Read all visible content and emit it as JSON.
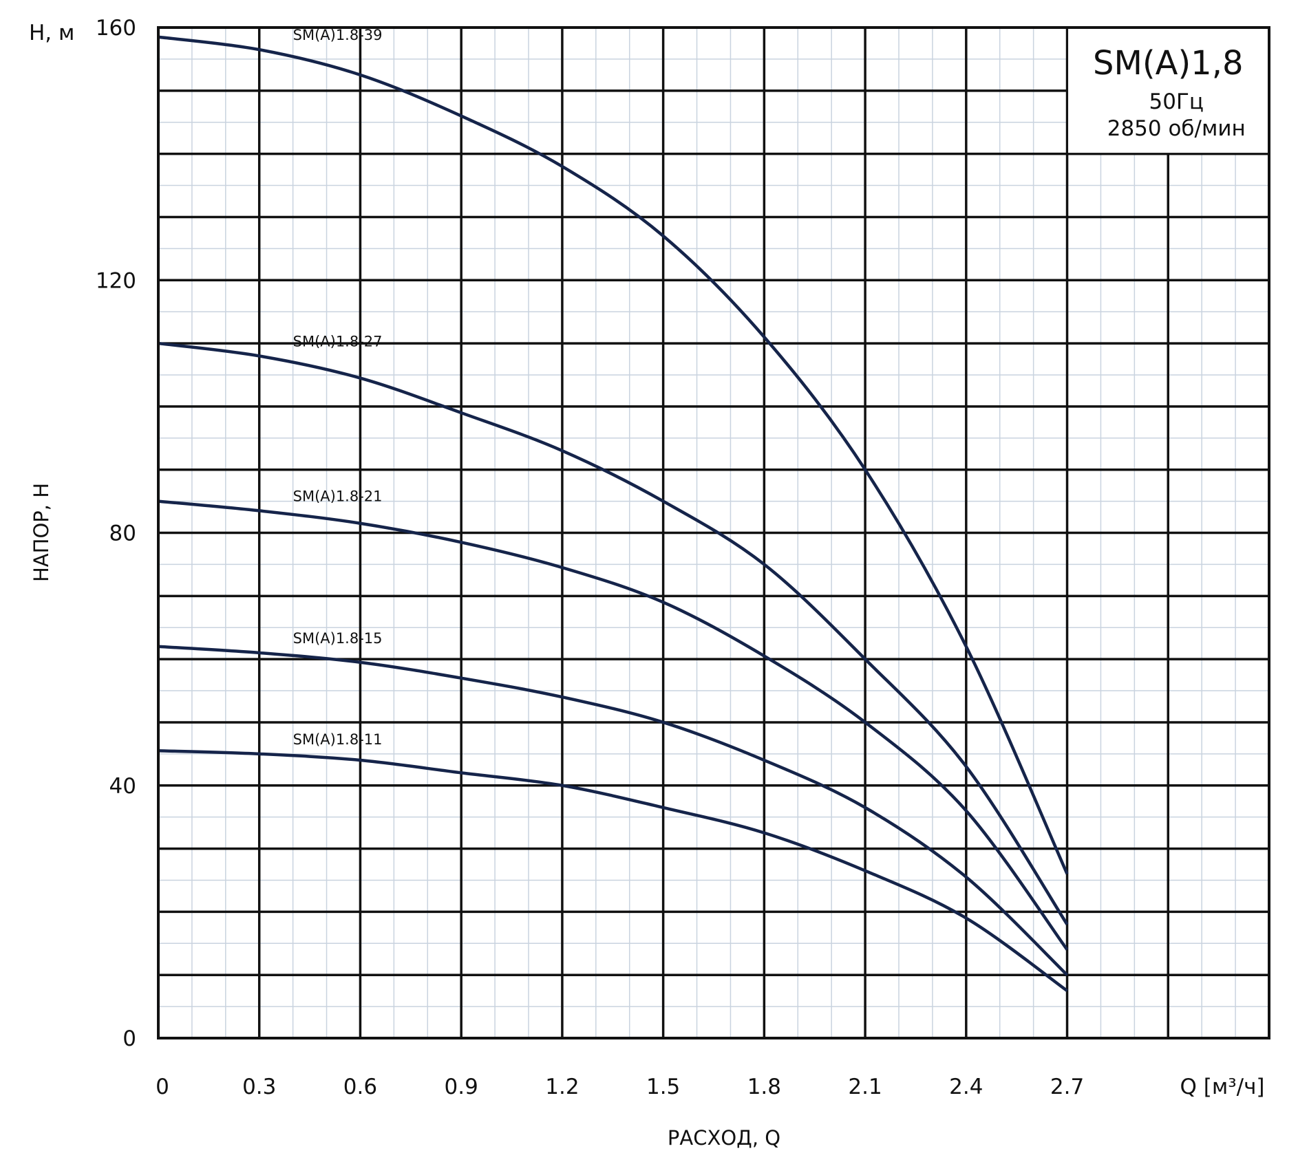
{
  "chart_data": {
    "type": "line",
    "title": "",
    "xlabel": "РАСХОД, Q",
    "ylabel": "НАПОР, Н",
    "x_unit_label": "Q [м³/ч]",
    "y_unit_label": "Н, м",
    "xlim": [
      0,
      3.3
    ],
    "ylim": [
      0,
      160
    ],
    "x_major_step": 0.3,
    "x_minor_step": 0.1,
    "y_major_step": 10,
    "y_minor_step": 5,
    "x_tick_labels": [
      "0",
      "0.3",
      "0.6",
      "0.9",
      "1.2",
      "1.5",
      "1.8",
      "2.1",
      "2.4",
      "2.7"
    ],
    "y_tick_labels": [
      "0",
      "40",
      "80",
      "120",
      "160"
    ],
    "grid": true,
    "line_color": "#15244a",
    "legend_box": {
      "position": "top-right",
      "model": "SM(A)1,8",
      "frequency": "50Гц",
      "speed": "2850 об/мин"
    },
    "x": [
      0,
      0.3,
      0.6,
      0.9,
      1.2,
      1.5,
      1.8,
      2.1,
      2.4,
      2.7
    ],
    "series": [
      {
        "name": "SM(A)1.8-39",
        "values": [
          158.5,
          156.5,
          152.5,
          146,
          138,
          127,
          111,
          90,
          62,
          26
        ]
      },
      {
        "name": "SM(A)1.8-27",
        "values": [
          110,
          108,
          104.5,
          99,
          93,
          85,
          75,
          60,
          43,
          18
        ]
      },
      {
        "name": "SM(A)1.8-21",
        "values": [
          85,
          83.5,
          81.5,
          78.5,
          74.5,
          69,
          60.5,
          50,
          36,
          14
        ]
      },
      {
        "name": "SM(A)1.8-15",
        "values": [
          62,
          61,
          59.5,
          57,
          54,
          50,
          44,
          36.5,
          25.5,
          10
        ]
      },
      {
        "name": "SM(A)1.8-11",
        "values": [
          45.5,
          45,
          44,
          42,
          40,
          36.5,
          32.5,
          26.5,
          19,
          7.5
        ]
      }
    ]
  }
}
